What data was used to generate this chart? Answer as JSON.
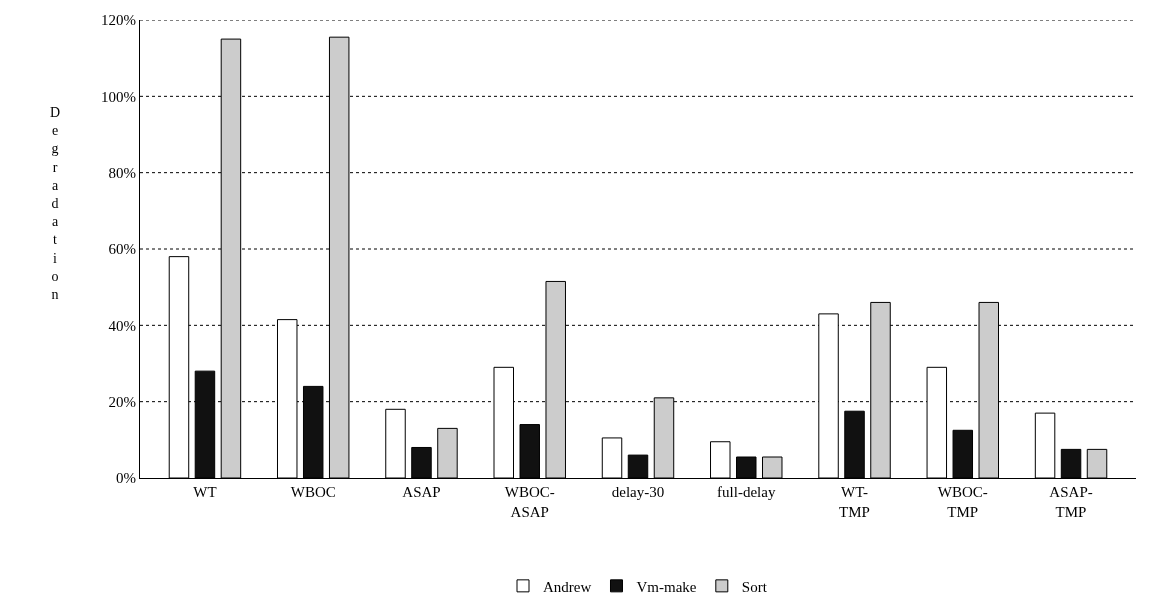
{
  "chart_data": {
    "type": "bar",
    "ylabel": "Degradation",
    "categories": [
      "WT",
      "WBOC",
      "ASAP",
      "WBOC-\nASAP",
      "delay-30",
      "full-delay",
      "WT-\nTMP",
      "WBOC-\nTMP",
      "ASAP-\nTMP"
    ],
    "series": [
      {
        "name": "Andrew",
        "color": "#ffffff",
        "values": [
          58,
          41.5,
          18,
          29,
          10.5,
          9.5,
          43,
          29,
          17
        ]
      },
      {
        "name": "Vm-make",
        "color": "#111111",
        "values": [
          28,
          24,
          8,
          14,
          6,
          5.5,
          17.5,
          12.5,
          7.5
        ]
      },
      {
        "name": "Sort",
        "color": "#cccccc",
        "values": [
          115,
          115.5,
          13,
          51.5,
          21,
          5.5,
          46,
          46,
          7.5
        ]
      }
    ],
    "ylim": [
      0,
      120
    ],
    "yticks": [
      {
        "value": 0,
        "label": "0%"
      },
      {
        "value": 20,
        "label": "20%"
      },
      {
        "value": 40,
        "label": "40%"
      },
      {
        "value": 60,
        "label": "60%"
      },
      {
        "value": 80,
        "label": "80%"
      },
      {
        "value": 100,
        "label": "100%"
      },
      {
        "value": 120,
        "label": "120%"
      }
    ],
    "grid": "y",
    "legend": "bottom"
  }
}
